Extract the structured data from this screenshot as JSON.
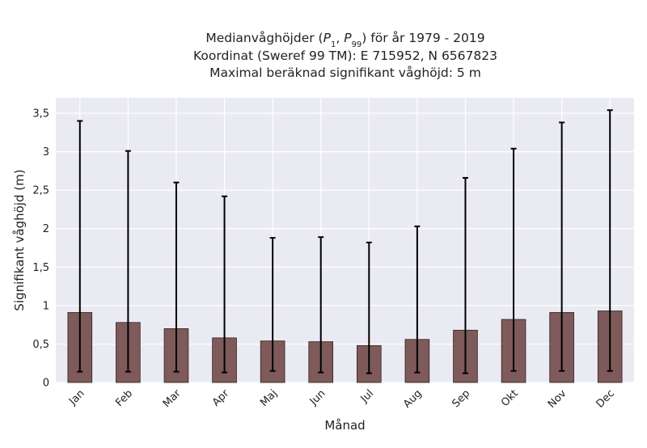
{
  "chart_data": {
    "type": "bar",
    "title": {
      "line1_prefix": "Medianvåghöjder (",
      "p1_base": "P",
      "p1_sub": "1",
      "separator": ", ",
      "p99_base": "P",
      "p99_sub": "99",
      "line1_suffix": ") för år 1979 - 2019",
      "line2": "Koordinat (Sweref 99 TM): E 715952, N 6567823",
      "line3": "Maximal beräknad signifikant våghöjd: 5 m"
    },
    "xlabel": "Månad",
    "ylabel": "Signifikant våghöjd (m)",
    "ylim": [
      0,
      3.7
    ],
    "yticks": [
      {
        "value": 0,
        "label": "0"
      },
      {
        "value": 0.5,
        "label": "0,5"
      },
      {
        "value": 1,
        "label": "1"
      },
      {
        "value": 1.5,
        "label": "1,5"
      },
      {
        "value": 2,
        "label": "2"
      },
      {
        "value": 2.5,
        "label": "2,5"
      },
      {
        "value": 3,
        "label": "3"
      },
      {
        "value": 3.5,
        "label": "3,5"
      }
    ],
    "categories": [
      "Jan",
      "Feb",
      "Mar",
      "Apr",
      "Maj",
      "Jun",
      "Jul",
      "Aug",
      "Sep",
      "Okt",
      "Nov",
      "Dec"
    ],
    "median": [
      0.91,
      0.78,
      0.7,
      0.58,
      0.54,
      0.53,
      0.48,
      0.56,
      0.68,
      0.82,
      0.91,
      0.93
    ],
    "p1": [
      0.14,
      0.14,
      0.14,
      0.13,
      0.15,
      0.13,
      0.12,
      0.13,
      0.12,
      0.15,
      0.15,
      0.15
    ],
    "p99": [
      3.4,
      3.01,
      2.6,
      2.42,
      1.88,
      1.89,
      1.82,
      2.03,
      2.66,
      3.04,
      3.38,
      3.54
    ],
    "grid": true,
    "colors": {
      "bar": "#7f5a5a",
      "bar_edge": "#2f2222",
      "plot_bg": "#eaeaf2",
      "grid": "#ffffff",
      "errorbar": "#000000"
    }
  }
}
